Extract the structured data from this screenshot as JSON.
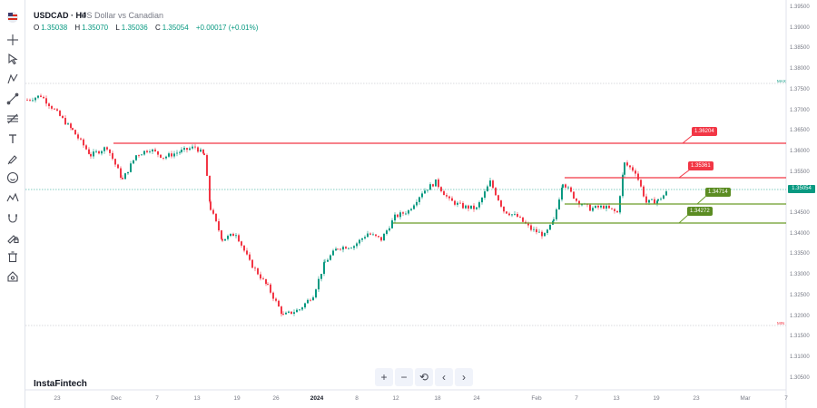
{
  "header": {
    "symbol": "USDCAD · H4",
    "description": "US Dollar vs Canadian",
    "flag_icon": "us-ca-flag-icon"
  },
  "ohlc": {
    "o_label": "O",
    "o": "1.35038",
    "h_label": "H",
    "h": "1.35070",
    "l_label": "L",
    "l": "1.35036",
    "c_label": "C",
    "c": "1.35054",
    "change": "+0.00017 (+0.01%)"
  },
  "toolbar": {
    "items": [
      "crosshair-icon",
      "cursor-icon",
      "indicators-icon",
      "trend-line-icon",
      "fib-icon",
      "text-icon",
      "brush-icon",
      "emoji-icon",
      "patterns-icon",
      "magnet-icon",
      "lock-draw-icon",
      "trash-icon",
      "settings-icon"
    ]
  },
  "watermark": "InstaFintech",
  "nav_buttons": [
    "+",
    "−",
    "⟲",
    "‹",
    "›"
  ],
  "price_axis": {
    "labels": [
      "1.39500",
      "1.39000",
      "1.38500",
      "1.38000",
      "1.37500",
      "1.37000",
      "1.36500",
      "1.36000",
      "1.35500",
      "1.35000",
      "1.34500",
      "1.34000",
      "1.33500",
      "1.33000",
      "1.32500",
      "1.32000",
      "1.31500",
      "1.31000",
      "1.30500"
    ]
  },
  "time_axis": {
    "labels": [
      "23",
      "Dec",
      "7",
      "13",
      "19",
      "26",
      "2024",
      "8",
      "12",
      "18",
      "24",
      "Feb",
      "7",
      "13",
      "19",
      "23",
      "Mar",
      "7"
    ],
    "bold": [
      "2024"
    ]
  },
  "levels": {
    "resistance_1": "1.36204",
    "resistance_2": "1.35361",
    "support_1": "1.34714",
    "support_2": "1.34272",
    "current": "1.35054",
    "max_label": "MAX",
    "min_label": "MIN"
  },
  "colors": {
    "up": "#089981",
    "down": "#f23645",
    "resistance": "#f23645",
    "support": "#6a9c28",
    "support_tag": "#5b8c22"
  },
  "chart_data": {
    "type": "candlestick",
    "title": "",
    "ylim": [
      1.305,
      1.395
    ],
    "x": [
      "Nov 20",
      "Nov 23",
      "Dec 1",
      "Dec 7",
      "Dec 13",
      "Dec 19",
      "Dec 26",
      "Jan 2",
      "Jan 8",
      "Jan 12",
      "Jan 18",
      "Jan 24",
      "Feb 1",
      "Feb 7",
      "Feb 13",
      "Feb 19",
      "Feb 21"
    ],
    "close": [
      1.373,
      1.3715,
      1.358,
      1.36,
      1.361,
      1.342,
      1.3195,
      1.333,
      1.34,
      1.348,
      1.349,
      1.346,
      1.343,
      1.348,
      1.349,
      1.347,
      1.3505
    ],
    "horizontal_levels": [
      {
        "name": "resistance",
        "value": 1.36204
      },
      {
        "name": "resistance",
        "value": 1.35361
      },
      {
        "name": "support",
        "value": 1.34714
      },
      {
        "name": "support",
        "value": 1.34272
      }
    ]
  }
}
